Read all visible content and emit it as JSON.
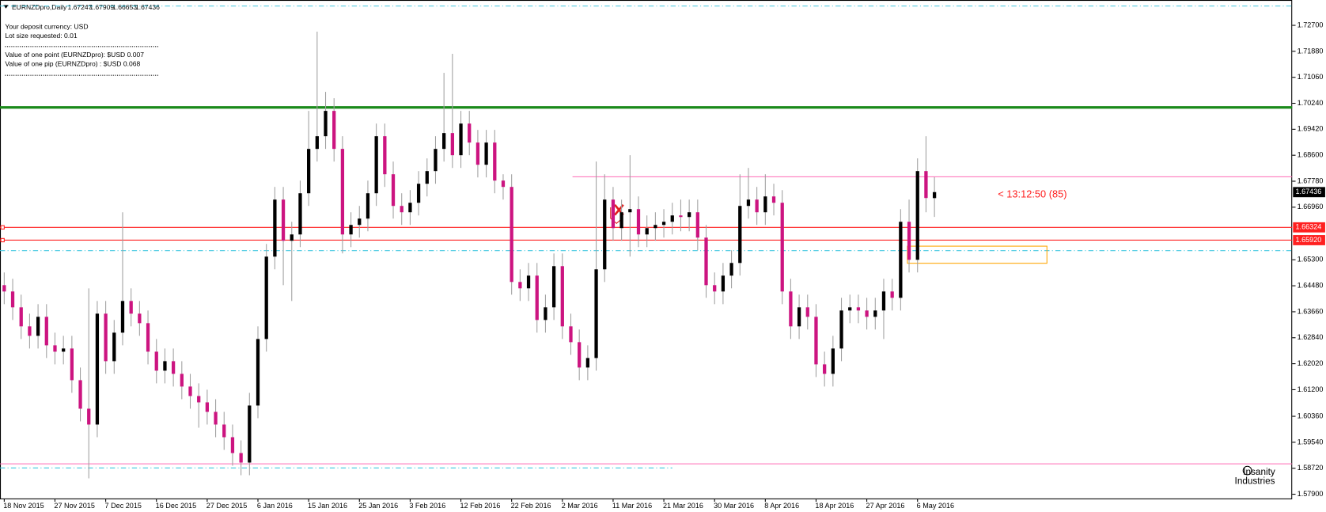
{
  "chart_data": {
    "type": "candlestick",
    "title": "EURNZDpro,Daily",
    "info": [
      "Your deposit currency: USD",
      "Lot size requested: 0.01",
      "Value of one point (EURNZDpro):  $USD 0.007",
      "Value of one pip    (EURNZDpro) : $USD 0.068"
    ],
    "countdown": "< 13:12:50 (85)",
    "logo": [
      "Insanity",
      "Industries"
    ],
    "bull_color": "#000000",
    "bear_color": "#cc1480",
    "wick_color": "#a0a0a0",
    "categories": [
      "18 Nov 2015",
      null,
      null,
      null,
      null,
      null,
      "27 Nov 2015",
      null,
      null,
      null,
      null,
      null,
      "7 Dec 2015",
      null,
      null,
      null,
      null,
      null,
      "16 Dec 2015",
      null,
      null,
      null,
      null,
      null,
      "27 Dec 2015",
      null,
      null,
      null,
      null,
      null,
      "6 Jan 2016",
      null,
      null,
      null,
      null,
      null,
      "15 Jan 2016",
      null,
      null,
      null,
      null,
      null,
      "25 Jan 2016",
      null,
      null,
      null,
      null,
      null,
      "3 Feb 2016",
      null,
      null,
      null,
      null,
      null,
      "12 Feb 2016",
      null,
      null,
      null,
      null,
      null,
      "22 Feb 2016",
      null,
      null,
      null,
      null,
      null,
      "2 Mar 2016",
      null,
      null,
      null,
      null,
      null,
      "11 Mar 2016",
      null,
      null,
      null,
      null,
      null,
      "21 Mar 2016",
      null,
      null,
      null,
      null,
      null,
      "30 Mar 2016",
      null,
      null,
      null,
      null,
      null,
      "8 Apr 2016",
      null,
      null,
      null,
      null,
      null,
      "18 Apr 2016",
      null,
      null,
      null,
      null,
      null,
      "27 Apr 2016",
      null,
      null,
      null,
      null,
      null,
      "6 May 2016",
      null,
      null
    ],
    "open": [
      1.645,
      1.643,
      1.638,
      1.632,
      1.629,
      1.635,
      1.626,
      1.624,
      1.625,
      1.615,
      1.606,
      1.601,
      1.636,
      1.621,
      1.63,
      1.64,
      1.636,
      1.633,
      1.624,
      1.618,
      1.621,
      1.617,
      1.613,
      1.61,
      1.608,
      1.605,
      1.601,
      1.597,
      1.592,
      1.589,
      1.607,
      1.628,
      1.654,
      1.672,
      1.659,
      1.661,
      1.674,
      1.688,
      1.692,
      1.7,
      1.688,
      1.661,
      1.664,
      1.666,
      1.674,
      1.692,
      1.68,
      1.67,
      1.668,
      1.671,
      1.677,
      1.681,
      1.688,
      1.693,
      1.686,
      1.696,
      1.69,
      1.683,
      1.69,
      1.678,
      1.676,
      1.646,
      1.644,
      1.648,
      1.634,
      1.638,
      1.651,
      1.632,
      1.627,
      1.619,
      1.622,
      1.65,
      1.672,
      1.663,
      1.668,
      1.669,
      1.661,
      1.663,
      1.664,
      1.665,
      1.667,
      1.6665,
      1.668,
      1.66,
      1.645,
      1.643,
      1.648,
      1.652,
      1.67,
      1.672,
      1.668,
      1.673,
      1.671,
      1.643,
      1.632,
      1.638,
      1.635,
      1.62,
      1.617,
      1.625,
      1.637,
      1.638,
      1.637,
      1.635,
      1.637,
      1.643,
      1.641,
      1.665,
      1.653,
      1.681,
      1.67247
    ],
    "high": [
      1.649,
      1.647,
      1.642,
      1.636,
      1.639,
      1.639,
      1.63,
      1.629,
      1.629,
      1.619,
      1.644,
      1.64,
      1.64,
      1.634,
      1.668,
      1.644,
      1.64,
      1.637,
      1.628,
      1.625,
      1.625,
      1.621,
      1.617,
      1.614,
      1.612,
      1.609,
      1.605,
      1.601,
      1.596,
      1.611,
      1.632,
      1.658,
      1.676,
      1.676,
      1.665,
      1.678,
      1.7,
      1.725,
      1.706,
      1.704,
      1.692,
      1.668,
      1.67,
      1.678,
      1.696,
      1.696,
      1.684,
      1.674,
      1.675,
      1.681,
      1.685,
      1.692,
      1.712,
      1.718,
      1.7,
      1.7,
      1.694,
      1.694,
      1.694,
      1.68,
      1.68,
      1.65,
      1.652,
      1.652,
      1.642,
      1.655,
      1.655,
      1.636,
      1.631,
      1.626,
      1.684,
      1.68,
      1.676,
      1.672,
      1.686,
      1.673,
      1.667,
      1.668,
      1.669,
      1.671,
      1.672,
      1.672,
      1.672,
      1.664,
      1.649,
      1.652,
      1.656,
      1.68,
      1.682,
      1.676,
      1.68,
      1.677,
      1.675,
      1.647,
      1.642,
      1.642,
      1.639,
      1.624,
      1.629,
      1.641,
      1.642,
      1.642,
      1.641,
      1.641,
      1.647,
      1.647,
      1.669,
      1.672,
      1.685,
      1.692,
      1.67909
    ],
    "low": [
      1.639,
      1.634,
      1.628,
      1.625,
      1.625,
      1.622,
      1.62,
      1.62,
      1.611,
      1.602,
      1.584,
      1.597,
      1.617,
      1.617,
      1.626,
      1.632,
      1.629,
      1.62,
      1.614,
      1.614,
      1.613,
      1.609,
      1.606,
      1.6,
      1.601,
      1.597,
      1.593,
      1.588,
      1.585,
      1.585,
      1.603,
      1.624,
      1.65,
      1.645,
      1.64,
      1.657,
      1.67,
      1.684,
      1.688,
      1.684,
      1.655,
      1.657,
      1.66,
      1.662,
      1.67,
      1.676,
      1.666,
      1.664,
      1.664,
      1.667,
      1.673,
      1.677,
      1.684,
      1.682,
      1.682,
      1.686,
      1.679,
      1.679,
      1.674,
      1.672,
      1.642,
      1.64,
      1.64,
      1.63,
      1.63,
      1.634,
      1.628,
      1.623,
      1.615,
      1.615,
      1.618,
      1.646,
      1.659,
      1.659,
      1.654,
      1.657,
      1.657,
      1.659,
      1.66,
      1.661,
      1.662,
      1.662,
      1.656,
      1.641,
      1.639,
      1.639,
      1.644,
      1.648,
      1.666,
      1.664,
      1.664,
      1.667,
      1.639,
      1.628,
      1.628,
      1.631,
      1.616,
      1.613,
      1.613,
      1.621,
      1.633,
      1.633,
      1.631,
      1.631,
      1.628,
      1.637,
      1.637,
      1.649,
      1.649,
      1.668,
      1.66653
    ],
    "close": [
      1.643,
      1.638,
      1.632,
      1.629,
      1.635,
      1.626,
      1.624,
      1.625,
      1.615,
      1.606,
      1.601,
      1.636,
      1.621,
      1.63,
      1.64,
      1.636,
      1.633,
      1.624,
      1.618,
      1.621,
      1.617,
      1.613,
      1.61,
      1.608,
      1.605,
      1.601,
      1.597,
      1.592,
      1.589,
      1.607,
      1.628,
      1.654,
      1.672,
      1.659,
      1.661,
      1.674,
      1.688,
      1.692,
      1.7,
      1.688,
      1.661,
      1.664,
      1.666,
      1.674,
      1.692,
      1.68,
      1.67,
      1.668,
      1.671,
      1.677,
      1.681,
      1.688,
      1.693,
      1.686,
      1.696,
      1.69,
      1.683,
      1.69,
      1.678,
      1.676,
      1.646,
      1.644,
      1.648,
      1.634,
      1.638,
      1.651,
      1.632,
      1.627,
      1.619,
      1.622,
      1.65,
      1.672,
      1.663,
      1.668,
      1.669,
      1.661,
      1.663,
      1.664,
      1.665,
      1.667,
      1.6665,
      1.668,
      1.66,
      1.645,
      1.643,
      1.648,
      1.652,
      1.67,
      1.672,
      1.668,
      1.673,
      1.671,
      1.643,
      1.632,
      1.638,
      1.635,
      1.62,
      1.617,
      1.625,
      1.637,
      1.638,
      1.637,
      1.635,
      1.637,
      1.643,
      1.641,
      1.665,
      1.653,
      1.681,
      1.6725,
      1.67436
    ],
    "ylim": [
      1.5774,
      1.735
    ],
    "yticks": [
      {
        "value": 1.727,
        "label": "1.72700"
      },
      {
        "value": 1.7188,
        "label": "1.71880"
      },
      {
        "value": 1.7106,
        "label": "1.71060"
      },
      {
        "value": 1.7024,
        "label": "1.70240"
      },
      {
        "value": 1.6942,
        "label": "1.69420"
      },
      {
        "value": 1.686,
        "label": "1.68600"
      },
      {
        "value": 1.6778,
        "label": "1.67780"
      },
      {
        "value": 1.6696,
        "label": "1.66960"
      },
      {
        "value": 1.653,
        "label": "1.65300"
      },
      {
        "value": 1.6448,
        "label": "1.64480"
      },
      {
        "value": 1.6366,
        "label": "1.63660"
      },
      {
        "value": 1.6284,
        "label": "1.62840"
      },
      {
        "value": 1.6202,
        "label": "1.62020"
      },
      {
        "value": 1.612,
        "label": "1.61200"
      },
      {
        "value": 1.6036,
        "label": "1.60360"
      },
      {
        "value": 1.5954,
        "label": "1.59540"
      },
      {
        "value": 1.5872,
        "label": "1.58720"
      },
      {
        "value": 1.579,
        "label": "1.57900"
      }
    ],
    "grid": false,
    "levels": [
      {
        "value": 1.7331,
        "color": "#40c8e0",
        "style": "dashdot"
      },
      {
        "value": 1.7011,
        "color": "#1a8a1a",
        "style": "solid",
        "width": 3
      },
      {
        "value": 1.6792,
        "color": "#ff69b4",
        "style": "solid"
      },
      {
        "value": 1.66324,
        "color": "#ff2020",
        "style": "solid",
        "tag": true
      },
      {
        "value": 1.6592,
        "label": "1.65920",
        "color": "#ff2020",
        "style": "solid",
        "tag": true
      },
      {
        "value": 1.6559,
        "color": "#40c8e0",
        "style": "dashdot"
      },
      {
        "value": 1.5886,
        "color": "#ff69b4",
        "style": "solid"
      },
      {
        "value": 1.5873,
        "color": "#40c8e0",
        "style": "dashdot"
      }
    ],
    "rectangle": {
      "top": 1.6573,
      "bottom": 1.6519,
      "color": "#ffa500"
    }
  }
}
